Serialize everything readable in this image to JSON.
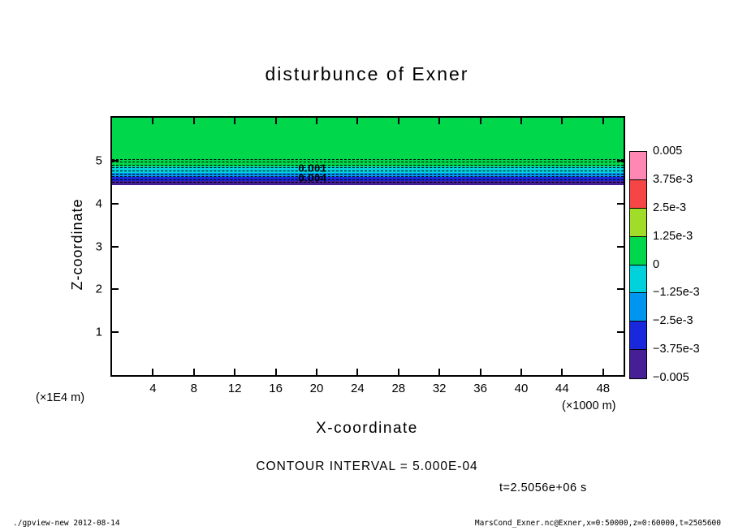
{
  "chart_data": {
    "type": "filled-contour",
    "title": "disturbunce of Exner",
    "xlabel": "X-coordinate",
    "ylabel": "Z-coordinate",
    "x_scale_note": "(×1000 m)",
    "y_scale_note": "(×1E4 m)",
    "xlim": [
      0,
      50
    ],
    "ylim": [
      0,
      6
    ],
    "x_ticks": [
      4,
      8,
      12,
      16,
      20,
      24,
      28,
      32,
      36,
      40,
      44,
      48
    ],
    "y_ticks": [
      1,
      2,
      3,
      4,
      5
    ],
    "grid": false,
    "contour_interval_text": "CONTOUR INTERVAL = 5.000E-04",
    "time_label": "t=2.5056e+06 s",
    "colorbar": {
      "boundary_labels": [
        "0.005",
        "3.75e-3",
        "2.5e-3",
        "1.25e-3",
        "0",
        "−1.25e-3",
        "−2.5e-3",
        "−3.75e-3",
        "−0.005"
      ],
      "segment_colors_top_to_bottom": [
        "#ff87b4",
        "#f54545",
        "#a0dc28",
        "#00d74b",
        "#00d2dc",
        "#0096f0",
        "#1928dc",
        "#461e96"
      ]
    },
    "field_bands": [
      {
        "value_range": "0 to 1.25e-3",
        "color": "#00d74b",
        "z_from": 4.87,
        "z_to": 6.0
      },
      {
        "value_range": "-1.25e-3 to 0",
        "color": "#00d2dc",
        "z_from": 4.71,
        "z_to": 4.87
      },
      {
        "value_range": "-2.5e-3 to -1.25e-3",
        "color": "#0096f0",
        "z_from": 4.62,
        "z_to": 4.71
      },
      {
        "value_range": "-3.75e-3 to -2.5e-3",
        "color": "#1928dc",
        "z_from": 4.52,
        "z_to": 4.62
      },
      {
        "value_range": "-0.005 to -3.75e-3",
        "color": "#461e96",
        "z_from": 4.43,
        "z_to": 4.52
      },
      {
        "value_range": "unshaded",
        "color": "#ffffff",
        "z_from": 0,
        "z_to": 4.43
      }
    ],
    "dashed_contour_z": [
      5.02,
      4.95,
      4.88,
      4.82,
      4.75,
      4.68,
      4.62,
      4.55,
      4.49
    ],
    "contour_labels": [
      {
        "text": "0.001",
        "x": 19.6,
        "z": 4.83
      },
      {
        "text": "0.004",
        "x": 19.6,
        "z": 4.6
      }
    ]
  },
  "footer": {
    "left": "./gpview-new  2012-08-14",
    "right": "MarsCond_Exner.nc@Exner,x=0:50000,z=0:60000,t=2505600"
  }
}
